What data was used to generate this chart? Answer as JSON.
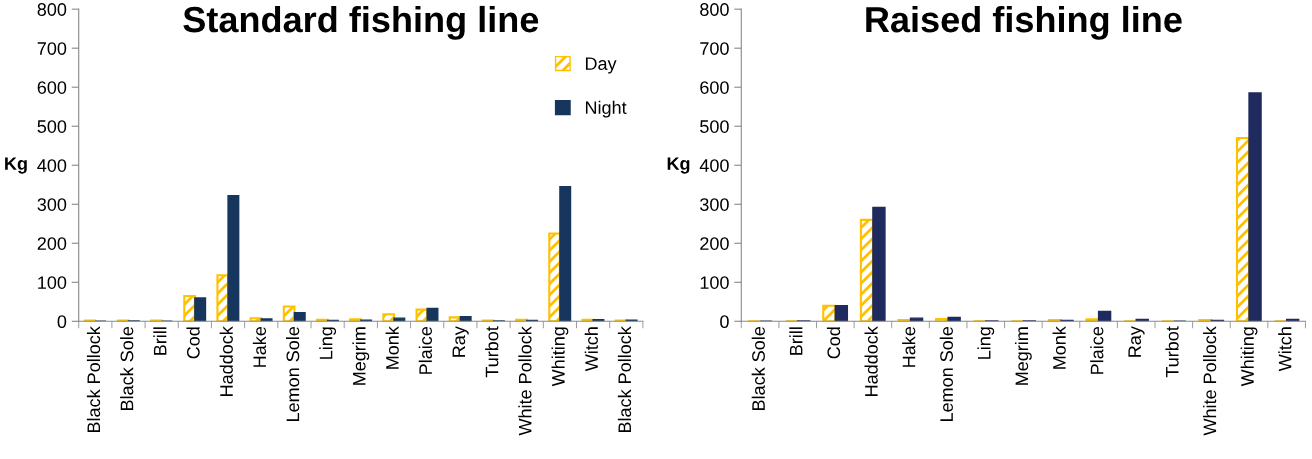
{
  "chart_data": [
    {
      "type": "bar",
      "title": "Standard fishing line",
      "ylabel": "Kg",
      "categories": [
        "Black Pollock",
        "Black Sole",
        "Brill",
        "Cod",
        "Haddock",
        "Hake",
        "Lemon Sole",
        "Ling",
        "Megrim",
        "Monk",
        "Plaice",
        "Ray",
        "Turbot",
        "White Pollock",
        "Whiting",
        "Witch",
        "Black Pollock"
      ],
      "series": [
        {
          "name": "Day",
          "color": "#ffc000",
          "values": [
            2,
            2,
            2,
            65,
            118,
            8,
            38,
            4,
            5,
            18,
            30,
            10,
            2,
            4,
            225,
            4,
            2
          ]
        },
        {
          "name": "Night",
          "color": "#17365d",
          "values": [
            0,
            1,
            0,
            60,
            322,
            6,
            22,
            2,
            3,
            8,
            33,
            12,
            1,
            2,
            345,
            4,
            3
          ]
        }
      ],
      "ylim": [
        0,
        800
      ],
      "yticks": [
        0,
        100,
        200,
        300,
        400,
        500,
        600,
        700,
        800
      ],
      "grid": false,
      "legend": "top right"
    },
    {
      "type": "bar",
      "title": "Raised fishing line",
      "ylabel": "Kg",
      "categories": [
        "Black Sole",
        "Brill",
        "Cod",
        "Haddock",
        "Hake",
        "Lemon Sole",
        "Ling",
        "Megrim",
        "Monk",
        "Plaice",
        "Ray",
        "Turbot",
        "White Pollock",
        "Whiting",
        "Witch"
      ],
      "series": [
        {
          "color": "#ffc000",
          "values": [
            0,
            0,
            40,
            260,
            3,
            6,
            0,
            0,
            3,
            5,
            0,
            0,
            3,
            470,
            0
          ]
        },
        {
          "color": "#1f2a5e",
          "values": [
            0,
            1,
            40,
            292,
            8,
            10,
            1,
            1,
            2,
            25,
            5,
            0,
            2,
            585,
            5
          ]
        }
      ],
      "ylim": [
        0,
        800
      ],
      "yticks": [
        0,
        100,
        200,
        300,
        400,
        500,
        600,
        700,
        800
      ],
      "grid": false,
      "legend": false
    }
  ]
}
